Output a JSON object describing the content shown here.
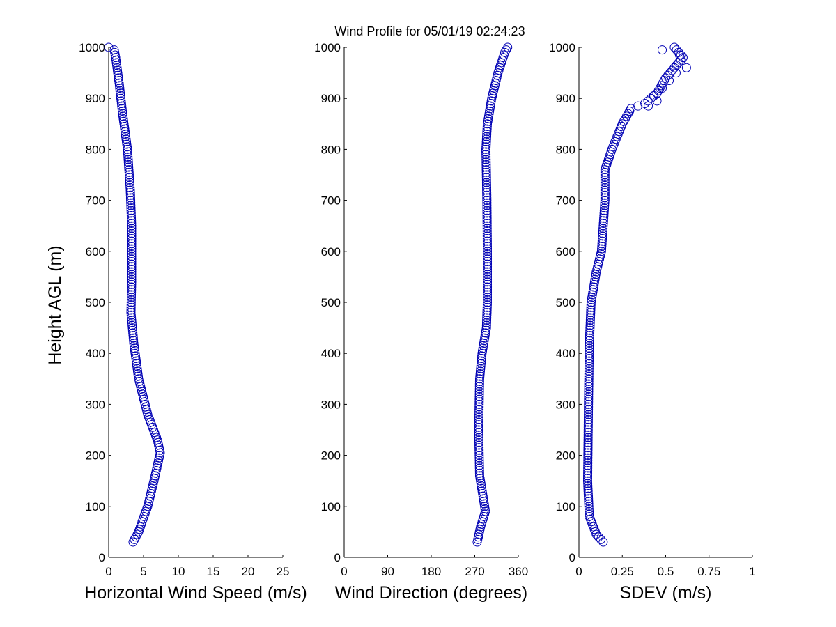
{
  "figure": {
    "title": "Wind Profile for  05/01/19 02:24:23",
    "ylabel": "Height AGL (m)"
  },
  "chart_data": [
    {
      "type": "scatter",
      "id": "speed",
      "xlabel": "Horizontal Wind Speed (m/s)",
      "ylabel": "Height AGL (m)",
      "xlim": [
        0,
        25
      ],
      "ylim": [
        0,
        1000
      ],
      "xticks": [
        0,
        5,
        10,
        15,
        20,
        25
      ],
      "xticklabels": [
        "0",
        "5",
        "10",
        "15",
        "20",
        "25"
      ],
      "yticks": [
        0,
        100,
        200,
        300,
        400,
        500,
        600,
        700,
        800,
        900,
        1000
      ],
      "yticklabels": [
        "0",
        "100",
        "200",
        "300",
        "400",
        "500",
        "600",
        "700",
        "800",
        "900",
        "1000"
      ],
      "marker": "circle",
      "color": "#0000b4",
      "profile": [
        [
          30,
          3.5
        ],
        [
          50,
          4.3
        ],
        [
          70,
          4.8
        ],
        [
          100,
          5.6
        ],
        [
          150,
          6.5
        ],
        [
          205,
          7.4
        ],
        [
          230,
          7.0
        ],
        [
          280,
          5.6
        ],
        [
          350,
          4.3
        ],
        [
          420,
          3.6
        ],
        [
          480,
          3.2
        ],
        [
          540,
          3.3
        ],
        [
          600,
          3.3
        ],
        [
          650,
          3.3
        ],
        [
          720,
          3.1
        ],
        [
          800,
          2.7
        ],
        [
          870,
          2.0
        ],
        [
          930,
          1.5
        ],
        [
          980,
          1.0
        ],
        [
          995,
          0.8
        ],
        [
          1000,
          0
        ]
      ]
    },
    {
      "type": "scatter",
      "id": "direction",
      "xlabel": "Wind Direction (degrees)",
      "xlim": [
        0,
        360
      ],
      "ylim": [
        0,
        1000
      ],
      "xticks": [
        0,
        90,
        180,
        270,
        360
      ],
      "xticklabels": [
        "0",
        "90",
        "180",
        "270",
        "360"
      ],
      "yticks": [
        0,
        100,
        200,
        300,
        400,
        500,
        600,
        700,
        800,
        900,
        1000
      ],
      "yticklabels": [
        "0",
        "100",
        "200",
        "300",
        "400",
        "500",
        "600",
        "700",
        "800",
        "900",
        "1000"
      ],
      "marker": "circle",
      "color": "#0000b4",
      "profile": [
        [
          30,
          275
        ],
        [
          60,
          282
        ],
        [
          90,
          292
        ],
        [
          120,
          287
        ],
        [
          160,
          280
        ],
        [
          250,
          278
        ],
        [
          350,
          280
        ],
        [
          400,
          285
        ],
        [
          450,
          294
        ],
        [
          500,
          296
        ],
        [
          600,
          296
        ],
        [
          700,
          295
        ],
        [
          800,
          293
        ],
        [
          850,
          296
        ],
        [
          900,
          305
        ],
        [
          950,
          318
        ],
        [
          990,
          332
        ],
        [
          1000,
          338
        ]
      ]
    },
    {
      "type": "scatter",
      "id": "sdev",
      "xlabel": "SDEV  (m/s)",
      "xlim": [
        0,
        1
      ],
      "ylim": [
        0,
        1000
      ],
      "xticks": [
        0,
        0.25,
        0.5,
        0.75,
        1
      ],
      "xticklabels": [
        "0",
        "0.25",
        "0.5",
        "0.75",
        "1"
      ],
      "yticks": [
        0,
        100,
        200,
        300,
        400,
        500,
        600,
        700,
        800,
        900,
        1000
      ],
      "yticklabels": [
        "0",
        "100",
        "200",
        "300",
        "400",
        "500",
        "600",
        "700",
        "800",
        "900",
        "1000"
      ],
      "marker": "circle",
      "color": "#0000b4",
      "profile": [
        [
          30,
          0.14
        ],
        [
          45,
          0.1
        ],
        [
          80,
          0.06
        ],
        [
          150,
          0.05
        ],
        [
          300,
          0.055
        ],
        [
          420,
          0.06
        ],
        [
          500,
          0.07
        ],
        [
          560,
          0.1
        ],
        [
          600,
          0.13
        ],
        [
          650,
          0.14
        ],
        [
          700,
          0.15
        ],
        [
          760,
          0.15
        ],
        [
          800,
          0.19
        ],
        [
          850,
          0.25
        ],
        [
          880,
          0.3
        ],
        [
          890,
          0.38
        ],
        [
          910,
          0.45
        ],
        [
          940,
          0.5
        ],
        [
          960,
          0.55
        ],
        [
          980,
          0.6
        ],
        [
          1000,
          0.55
        ]
      ],
      "extra_points": [
        [
          995,
          0.48
        ],
        [
          985,
          0.58
        ],
        [
          960,
          0.62
        ],
        [
          950,
          0.56
        ],
        [
          935,
          0.52
        ],
        [
          920,
          0.48
        ],
        [
          905,
          0.43
        ],
        [
          895,
          0.45
        ],
        [
          885,
          0.4
        ]
      ]
    }
  ]
}
